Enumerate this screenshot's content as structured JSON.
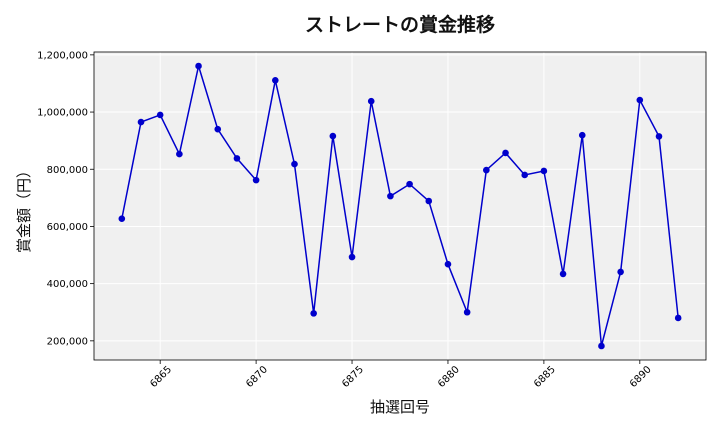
{
  "chart_data": {
    "type": "line",
    "title": "ストレートの賞金推移",
    "xlabel": "抽選回号",
    "ylabel": "賞金額（円）",
    "x": [
      6863,
      6864,
      6865,
      6866,
      6867,
      6868,
      6869,
      6870,
      6871,
      6872,
      6873,
      6874,
      6875,
      6876,
      6877,
      6878,
      6879,
      6880,
      6881,
      6882,
      6883,
      6884,
      6885,
      6886,
      6887,
      6888,
      6889,
      6890,
      6891,
      6892
    ],
    "series": [
      {
        "values": [
          627000,
          965000,
          990000,
          853000,
          1161000,
          940000,
          838000,
          762000,
          1111000,
          818000,
          296000,
          916000,
          493000,
          1038000,
          706000,
          748000,
          689000,
          468000,
          300000,
          797000,
          857000,
          780000,
          794000,
          434000,
          919000,
          182000,
          441000,
          1042000,
          915000,
          280000
        ],
        "color": "#0000cc"
      }
    ],
    "xticks": [
      6865,
      6870,
      6875,
      6880,
      6885,
      6890
    ],
    "yticks": [
      200000,
      400000,
      600000,
      800000,
      1000000,
      1200000
    ],
    "ytick_labels": [
      "200,000",
      "400,000",
      "600,000",
      "800,000",
      "1,000,000",
      "1,200,000"
    ],
    "xlim": [
      6861.55,
      6893.45
    ],
    "ylim": [
      133000,
      1210000
    ],
    "grid": true,
    "background": "#f0f0f0"
  }
}
